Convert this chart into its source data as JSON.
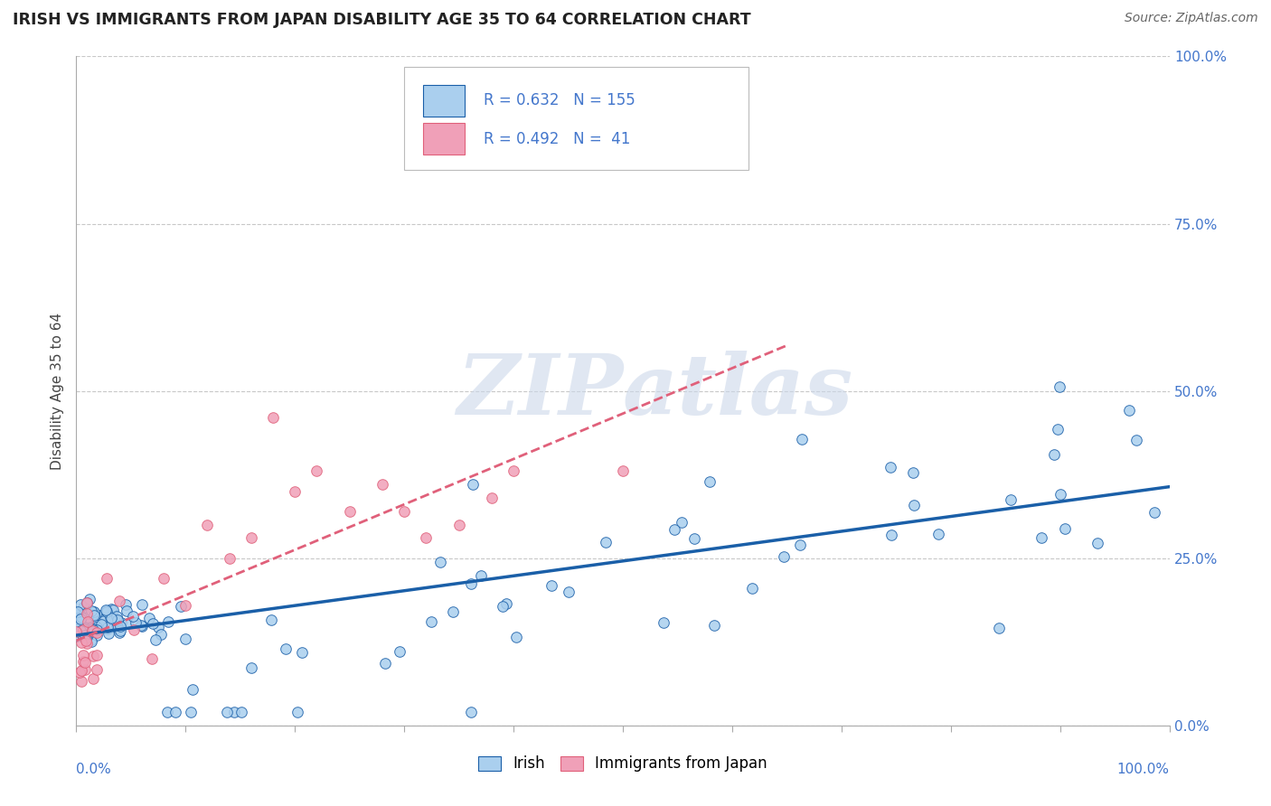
{
  "title": "IRISH VS IMMIGRANTS FROM JAPAN DISABILITY AGE 35 TO 64 CORRELATION CHART",
  "source": "Source: ZipAtlas.com",
  "ylabel": "Disability Age 35 to 64",
  "legend_irish_R": "0.632",
  "legend_irish_N": "155",
  "legend_japan_R": "0.492",
  "legend_japan_N": " 41",
  "irish_color": "#aacfee",
  "japan_color": "#f0a0b8",
  "trend_irish_color": "#1a5fa8",
  "trend_japan_color": "#e0607a",
  "background_color": "#ffffff",
  "grid_color": "#c8c8c8",
  "watermark_zip": "ZIP",
  "watermark_atlas": "atlas",
  "axis_label_color": "#4477cc"
}
